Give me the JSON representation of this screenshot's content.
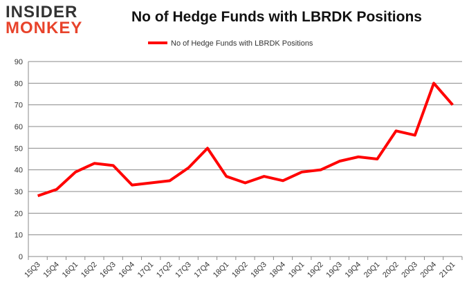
{
  "logo": {
    "line1": "INSIDER",
    "line2": "MONKEY"
  },
  "chart_data": {
    "type": "line",
    "title": "No of Hedge Funds with LBRDK Positions",
    "categories": [
      "15Q3",
      "15Q4",
      "16Q1",
      "16Q2",
      "16Q3",
      "16Q4",
      "17Q1",
      "17Q2",
      "17Q3",
      "17Q4",
      "18Q1",
      "18Q2",
      "18Q3",
      "18Q4",
      "19Q1",
      "19Q2",
      "19Q3",
      "19Q4",
      "20Q1",
      "20Q2",
      "20Q3",
      "20Q4",
      "21Q1"
    ],
    "series": [
      {
        "name": "No of Hedge Funds with LBRDK Positions",
        "values": [
          28,
          31,
          39,
          43,
          42,
          33,
          34,
          35,
          41,
          50,
          37,
          34,
          37,
          35,
          39,
          40,
          44,
          46,
          45,
          58,
          56,
          80,
          70
        ],
        "color": "#ff0000"
      }
    ],
    "ylim": [
      0,
      90
    ],
    "yticks": [
      0,
      10,
      20,
      30,
      40,
      50,
      60,
      70,
      80,
      90
    ],
    "grid": true,
    "legend": "top-center"
  }
}
